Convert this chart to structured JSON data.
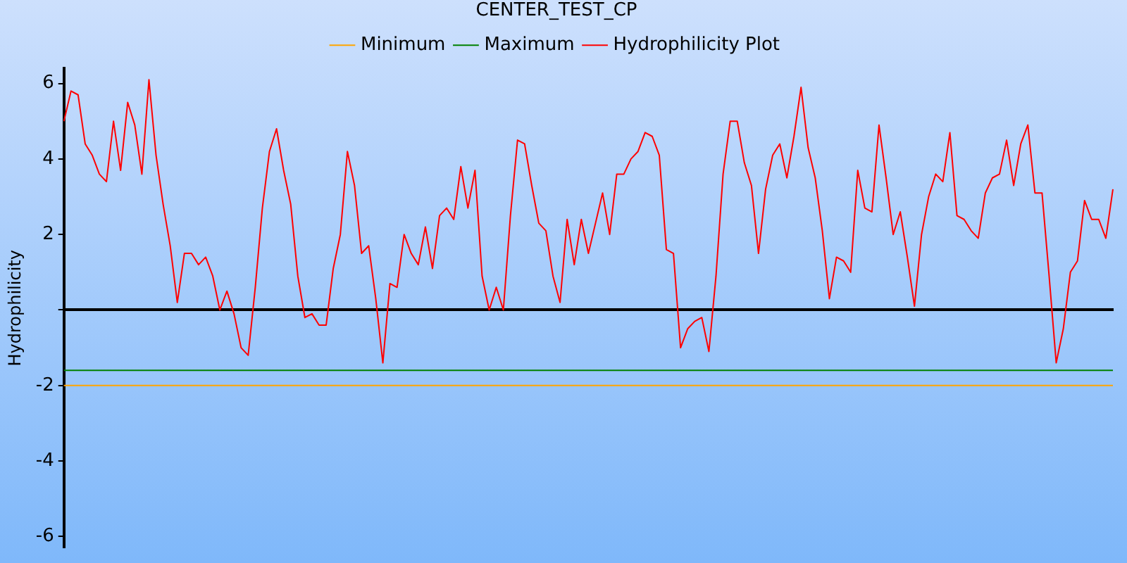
{
  "chart_data": {
    "type": "line",
    "title": "CENTER_TEST_CP",
    "ylabel": "Hydrophilicity",
    "categories": [
      null,
      null,
      null,
      null,
      null,
      null,
      null,
      null,
      null,
      null,
      null,
      null,
      null,
      null,
      null,
      null,
      null,
      null,
      null,
      null,
      null,
      null,
      null,
      null,
      null,
      null,
      null,
      null,
      null,
      null,
      null,
      null,
      null,
      null,
      null,
      null,
      null,
      null,
      null,
      null,
      null,
      null,
      null,
      null,
      null,
      null,
      null,
      null,
      null,
      null,
      null,
      null,
      null,
      null,
      null,
      null,
      null,
      null,
      null,
      null,
      null,
      null,
      null,
      null,
      null,
      null,
      null,
      null,
      null,
      null,
      null,
      null,
      null,
      null,
      null,
      null,
      null,
      null,
      null,
      null,
      null,
      null,
      null,
      null,
      null,
      null,
      null,
      null,
      null,
      null,
      null,
      null,
      null,
      null,
      null,
      null,
      null,
      null,
      null,
      null,
      null,
      null,
      null,
      null,
      null,
      null,
      null,
      null,
      null,
      null,
      null,
      null,
      null,
      null,
      null,
      null,
      null,
      null,
      null,
      null,
      null,
      null,
      null,
      null,
      null,
      null,
      null,
      null,
      null,
      null,
      null,
      null,
      null,
      null,
      null,
      null,
      null,
      null,
      null,
      null,
      null,
      null,
      null,
      null,
      null,
      null,
      null,
      null,
      null
    ],
    "series": [
      {
        "name": "Minimum",
        "color": "#ffa500",
        "values": [
          -2,
          -2,
          -2,
          -2,
          -2,
          -2,
          -2,
          -2,
          -2,
          -2,
          -2,
          -2,
          -2,
          -2,
          -2,
          -2,
          -2,
          -2,
          -2,
          -2,
          -2,
          -2,
          -2,
          -2,
          -2,
          -2,
          -2,
          -2,
          -2,
          -2,
          -2,
          -2,
          -2,
          -2,
          -2,
          -2,
          -2,
          -2,
          -2,
          -2,
          -2,
          -2,
          -2,
          -2,
          -2,
          -2,
          -2,
          -2,
          -2,
          -2,
          -2,
          -2,
          -2,
          -2,
          -2,
          -2,
          -2,
          -2,
          -2,
          -2,
          -2,
          -2,
          -2,
          -2,
          -2,
          -2,
          -2,
          -2,
          -2,
          -2,
          -2,
          -2,
          -2,
          -2,
          -2,
          -2,
          -2,
          -2,
          -2,
          -2,
          -2,
          -2,
          -2,
          -2,
          -2,
          -2,
          -2,
          -2,
          -2,
          -2,
          -2,
          -2,
          -2,
          -2,
          -2,
          -2,
          -2,
          -2,
          -2,
          -2,
          -2,
          -2,
          -2,
          -2,
          -2,
          -2,
          -2,
          -2,
          -2,
          -2,
          -2,
          -2,
          -2,
          -2,
          -2,
          -2,
          -2,
          -2,
          -2,
          -2,
          -2,
          -2,
          -2,
          -2,
          -2,
          -2,
          -2,
          -2,
          -2,
          -2,
          -2,
          -2,
          -2,
          -2,
          -2,
          -2,
          -2,
          -2,
          -2,
          -2,
          -2,
          -2,
          -2,
          -2,
          -2,
          -2,
          -2,
          -2,
          -2
        ]
      },
      {
        "name": "Maximum",
        "color": "#008000",
        "values": [
          -1.6,
          -1.6,
          -1.6,
          -1.6,
          -1.6,
          -1.6,
          -1.6,
          -1.6,
          -1.6,
          -1.6,
          -1.6,
          -1.6,
          -1.6,
          -1.6,
          -1.6,
          -1.6,
          -1.6,
          -1.6,
          -1.6,
          -1.6,
          -1.6,
          -1.6,
          -1.6,
          -1.6,
          -1.6,
          -1.6,
          -1.6,
          -1.6,
          -1.6,
          -1.6,
          -1.6,
          -1.6,
          -1.6,
          -1.6,
          -1.6,
          -1.6,
          -1.6,
          -1.6,
          -1.6,
          -1.6,
          -1.6,
          -1.6,
          -1.6,
          -1.6,
          -1.6,
          -1.6,
          -1.6,
          -1.6,
          -1.6,
          -1.6,
          -1.6,
          -1.6,
          -1.6,
          -1.6,
          -1.6,
          -1.6,
          -1.6,
          -1.6,
          -1.6,
          -1.6,
          -1.6,
          -1.6,
          -1.6,
          -1.6,
          -1.6,
          -1.6,
          -1.6,
          -1.6,
          -1.6,
          -1.6,
          -1.6,
          -1.6,
          -1.6,
          -1.6,
          -1.6,
          -1.6,
          -1.6,
          -1.6,
          -1.6,
          -1.6,
          -1.6,
          -1.6,
          -1.6,
          -1.6,
          -1.6,
          -1.6,
          -1.6,
          -1.6,
          -1.6,
          -1.6,
          -1.6,
          -1.6,
          -1.6,
          -1.6,
          -1.6,
          -1.6,
          -1.6,
          -1.6,
          -1.6,
          -1.6,
          -1.6,
          -1.6,
          -1.6,
          -1.6,
          -1.6,
          -1.6,
          -1.6,
          -1.6,
          -1.6,
          -1.6,
          -1.6,
          -1.6,
          -1.6,
          -1.6,
          -1.6,
          -1.6,
          -1.6,
          -1.6,
          -1.6,
          -1.6,
          -1.6,
          -1.6,
          -1.6,
          -1.6,
          -1.6,
          -1.6,
          -1.6,
          -1.6,
          -1.6,
          -1.6,
          -1.6,
          -1.6,
          -1.6,
          -1.6,
          -1.6,
          -1.6,
          -1.6,
          -1.6,
          -1.6,
          -1.6,
          -1.6,
          -1.6,
          -1.6,
          -1.6,
          -1.6,
          -1.6,
          -1.6,
          -1.6,
          -1.6
        ]
      },
      {
        "name": "Hydrophilicity Plot",
        "color": "#ff0000",
        "values": [
          5.0,
          5.8,
          5.7,
          4.4,
          4.1,
          3.6,
          3.4,
          5.0,
          3.7,
          5.5,
          4.9,
          3.6,
          6.1,
          4.1,
          2.8,
          1.7,
          0.2,
          1.5,
          1.5,
          1.2,
          1.4,
          0.9,
          0.0,
          0.5,
          -0.1,
          -1.0,
          -1.2,
          0.6,
          2.7,
          4.2,
          4.8,
          3.7,
          2.8,
          0.9,
          -0.2,
          -0.1,
          -0.4,
          -0.4,
          1.1,
          2.0,
          4.2,
          3.3,
          1.5,
          1.7,
          0.3,
          -1.4,
          0.7,
          0.6,
          2.0,
          1.5,
          1.2,
          2.2,
          1.1,
          2.5,
          2.7,
          2.4,
          3.8,
          2.7,
          3.7,
          0.9,
          0.0,
          0.6,
          0.0,
          2.5,
          4.5,
          4.4,
          3.3,
          2.3,
          2.1,
          0.9,
          0.2,
          2.4,
          1.2,
          2.4,
          1.5,
          2.3,
          3.1,
          2.0,
          3.6,
          3.6,
          4.0,
          4.2,
          4.7,
          4.6,
          4.1,
          1.6,
          1.5,
          -1.0,
          -0.5,
          -0.3,
          -0.2,
          -1.1,
          0.9,
          3.6,
          5.0,
          5.0,
          3.9,
          3.3,
          1.5,
          3.2,
          4.1,
          4.4,
          3.5,
          4.6,
          5.9,
          4.3,
          3.5,
          2.1,
          0.3,
          1.4,
          1.3,
          1.0,
          3.7,
          2.7,
          2.6,
          4.9,
          3.5,
          2.0,
          2.6,
          1.4,
          0.1,
          2.0,
          3.0,
          3.6,
          3.4,
          4.7,
          2.5,
          2.4,
          2.1,
          1.9,
          3.1,
          3.5,
          3.6,
          4.5,
          3.3,
          4.4,
          4.9,
          3.1,
          3.1,
          0.9,
          -1.4,
          -0.5,
          1.0,
          1.3,
          2.9,
          2.4,
          2.4,
          1.9,
          3.2
        ]
      }
    ],
    "ylim": [
      -6.3,
      6.4
    ],
    "yticks": [
      6,
      4,
      2,
      {
        "value": 0,
        "label": null
      },
      -2,
      -4,
      -6
    ],
    "legend": "top",
    "marker": "none",
    "line_style": "solid"
  }
}
